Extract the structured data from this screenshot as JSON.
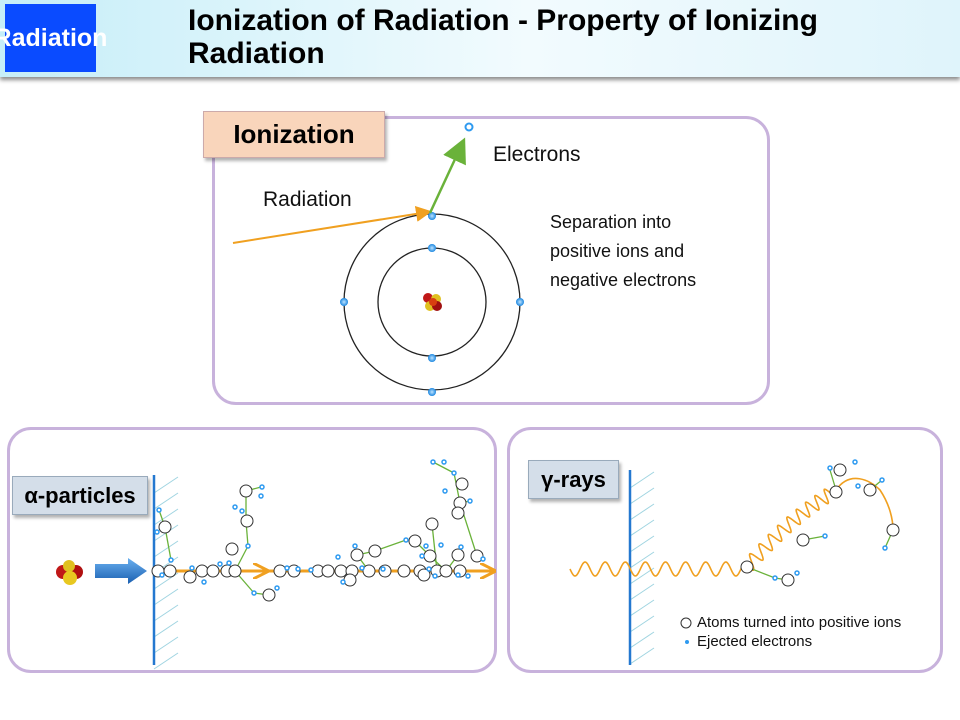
{
  "header": {
    "category": "Radiation",
    "title": "Ionization of Radiation - Property of Ionizing Radiation"
  },
  "ionization": {
    "label": "Ionization",
    "radiation_label": "Radiation",
    "electrons_label": "Electrons",
    "description_lines": [
      "Separation into",
      "positive ions and",
      "negative electrons"
    ]
  },
  "alpha": {
    "label": "α-particles"
  },
  "gamma": {
    "label": "γ-rays",
    "legend": [
      {
        "icon": "open-circle",
        "label": "Atoms turned into positive ions"
      },
      {
        "icon": "blue-dot",
        "label": "Ejected electrons"
      }
    ]
  },
  "colors": {
    "brand_blue": "#0a4bff",
    "panel_border": "#c8b2dc",
    "radiation_orange": "#f0a020",
    "electron_blue": "#2e9af0",
    "track_green": "#6ab23a",
    "wall_blue": "#2478d0"
  }
}
